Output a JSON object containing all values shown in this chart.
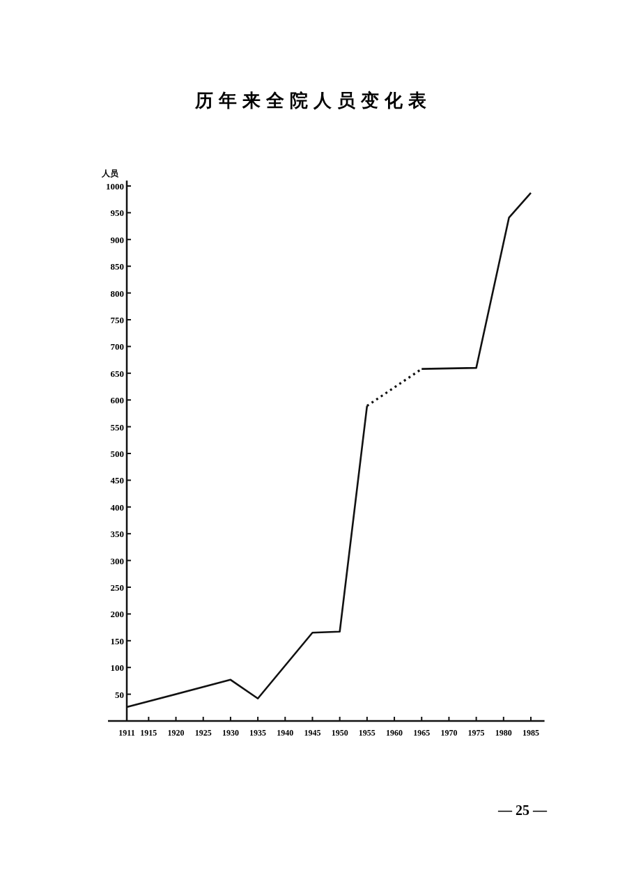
{
  "chart_data": {
    "type": "line",
    "title": "历年来全院人员变化表",
    "ylabel": "人员",
    "xlim": [
      1911,
      1987.5
    ],
    "xticks": [
      1911,
      1915,
      1920,
      1925,
      1930,
      1935,
      1940,
      1945,
      1950,
      1955,
      1960,
      1965,
      1970,
      1975,
      1980,
      1985
    ],
    "ylim": [
      0,
      1010
    ],
    "yticks": [
      50,
      100,
      150,
      200,
      250,
      300,
      350,
      400,
      450,
      500,
      550,
      600,
      650,
      700,
      750,
      800,
      850,
      900,
      950,
      1000
    ],
    "grid": false,
    "marker": "none",
    "series": [
      {
        "color": "#111111",
        "line_style": "solid",
        "x": [
          1911,
          1930,
          1935,
          1945,
          1950,
          1955
        ],
        "values": [
          26,
          77,
          42,
          165,
          167,
          589
        ]
      },
      {
        "color": "#111111",
        "line_style": "dotted",
        "x": [
          1955,
          1965
        ],
        "values": [
          589,
          658
        ]
      },
      {
        "color": "#111111",
        "line_style": "solid",
        "x": [
          1965,
          1975,
          1981,
          1985
        ],
        "values": [
          658,
          660,
          941,
          987
        ]
      }
    ],
    "annotations": [
      "— 25 —"
    ]
  }
}
